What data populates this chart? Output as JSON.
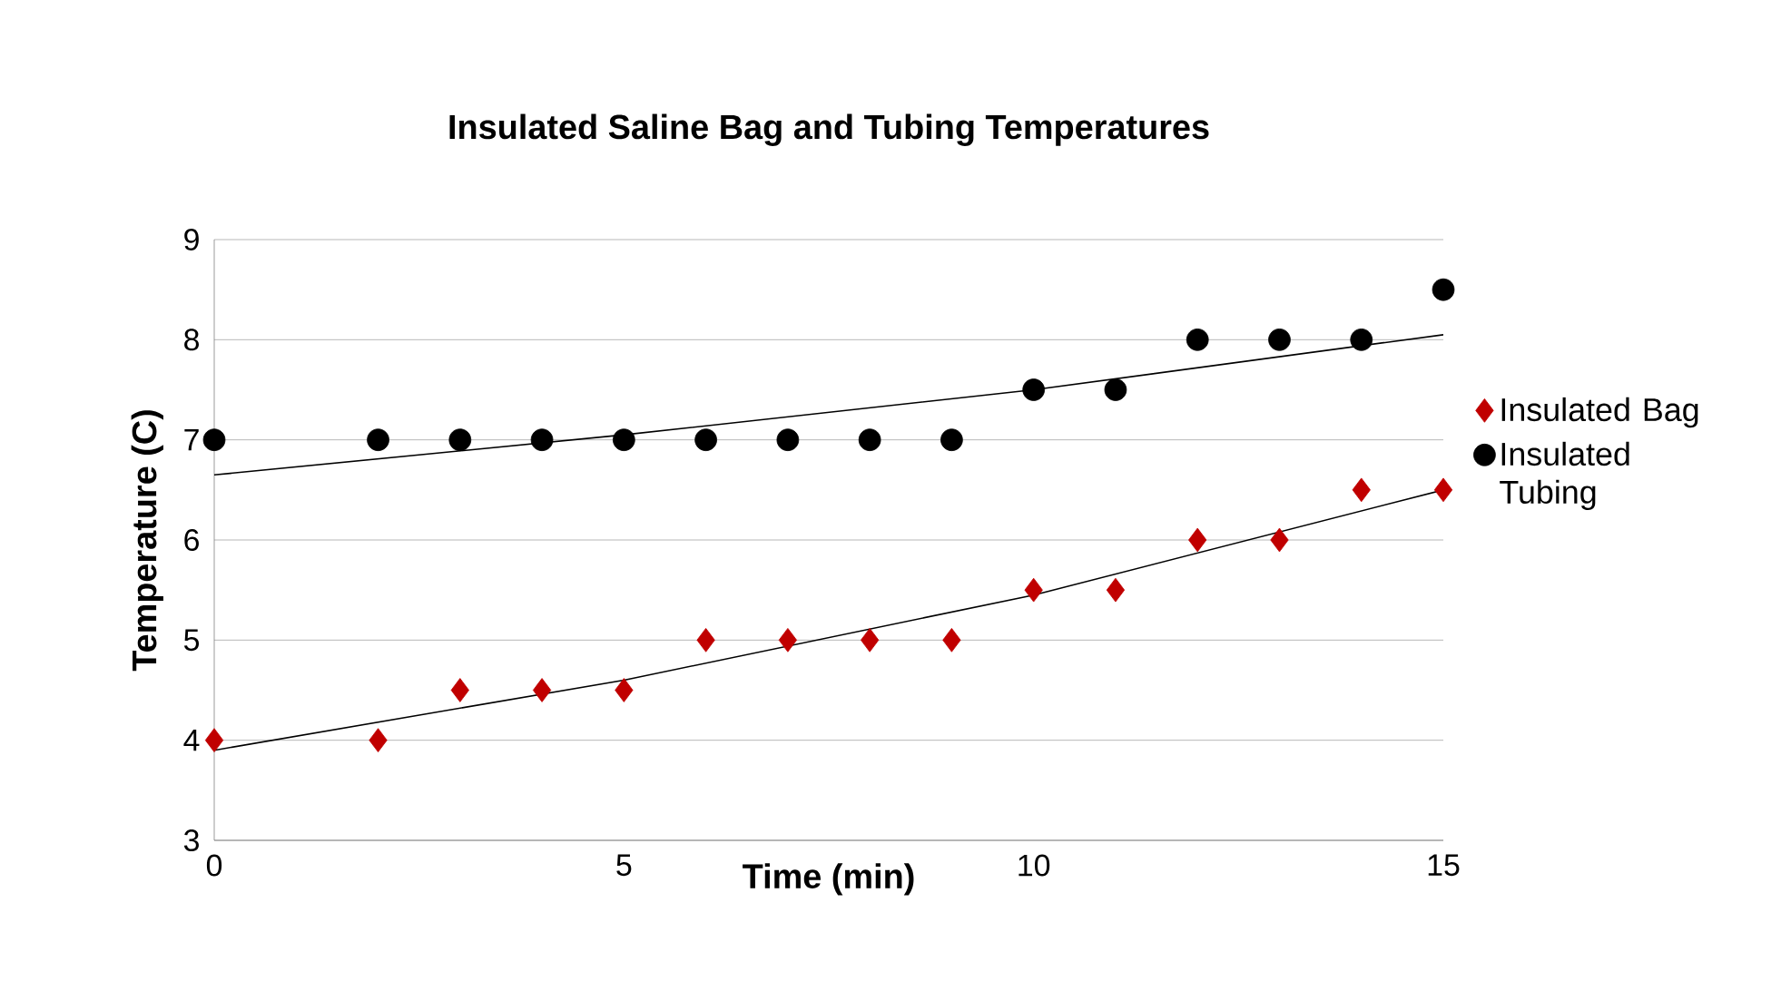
{
  "chart_data": {
    "type": "scatter",
    "title": "Insulated Saline Bag and Tubing Temperatures",
    "xlabel": "Time (min)",
    "ylabel": "Temperature (C)",
    "xlim": [
      0,
      15
    ],
    "ylim": [
      3,
      9
    ],
    "xticks": [
      0,
      5,
      10,
      15
    ],
    "yticks": [
      3,
      4,
      5,
      6,
      7,
      8,
      9
    ],
    "grid": "y",
    "legend": "right",
    "series": [
      {
        "name": "Insulated Bag",
        "color": "#c00000",
        "marker": "diamond",
        "x": [
          0,
          2,
          3,
          4,
          5,
          6,
          7,
          8,
          9,
          10,
          11,
          12,
          13,
          14,
          15
        ],
        "values": [
          4,
          4,
          4.5,
          4.5,
          4.5,
          5,
          5,
          5,
          5,
          5.5,
          5.5,
          6,
          6,
          6.5,
          6.5
        ]
      },
      {
        "name": "Insulated Tubing",
        "color": "#000000",
        "marker": "circle",
        "x": [
          0,
          2,
          3,
          4,
          5,
          6,
          7,
          8,
          9,
          10,
          11,
          12,
          13,
          14,
          15
        ],
        "values": [
          7,
          7,
          7,
          7,
          7,
          7,
          7,
          7,
          7,
          7.5,
          7.5,
          8,
          8,
          8,
          8.5
        ]
      },
      {
        "type": "line",
        "color": "#000000",
        "marker": "none",
        "x": [
          0,
          5,
          10,
          15
        ],
        "values": [
          3.9,
          4.6,
          5.45,
          6.5
        ]
      },
      {
        "type": "line",
        "color": "#000000",
        "marker": "none",
        "x": [
          0,
          5,
          10,
          15
        ],
        "values": [
          6.65,
          7.05,
          7.5,
          8.05
        ]
      }
    ]
  }
}
